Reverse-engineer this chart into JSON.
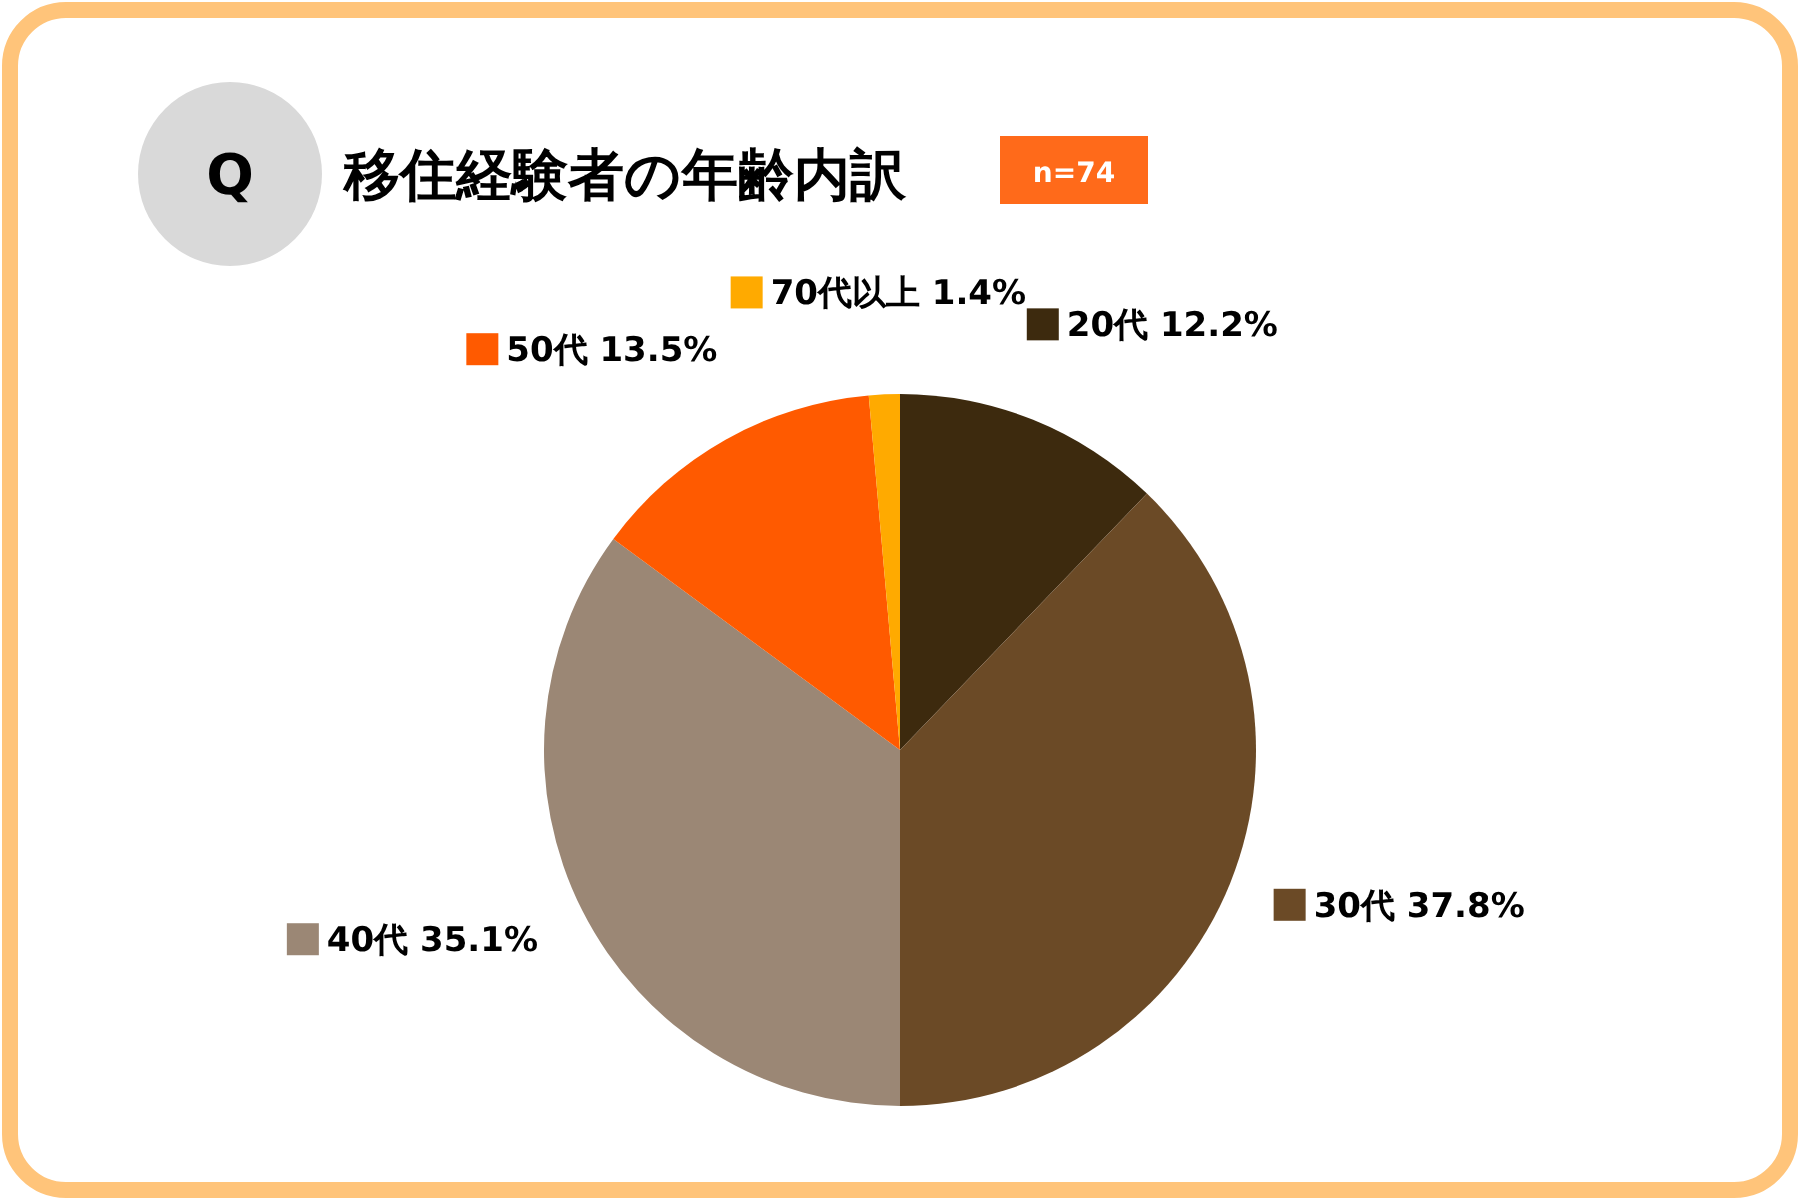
{
  "chart_data": {
    "type": "pie",
    "title": "移住経験者の年齢内訳",
    "annotations": [
      "Q",
      "n=74"
    ],
    "categories": [
      "20代",
      "30代",
      "40代",
      "50代",
      "70代以上"
    ],
    "values": [
      12.2,
      37.8,
      35.1,
      13.5,
      1.4
    ],
    "colors": [
      "#3d2a0e",
      "#6b4a26",
      "#9b8775",
      "#ff5a00",
      "#ffaa00"
    ],
    "legend": "top",
    "value_labels": [
      "12.2%",
      "37.8%",
      "35.1%",
      "13.5%",
      "1.4%"
    ]
  }
}
